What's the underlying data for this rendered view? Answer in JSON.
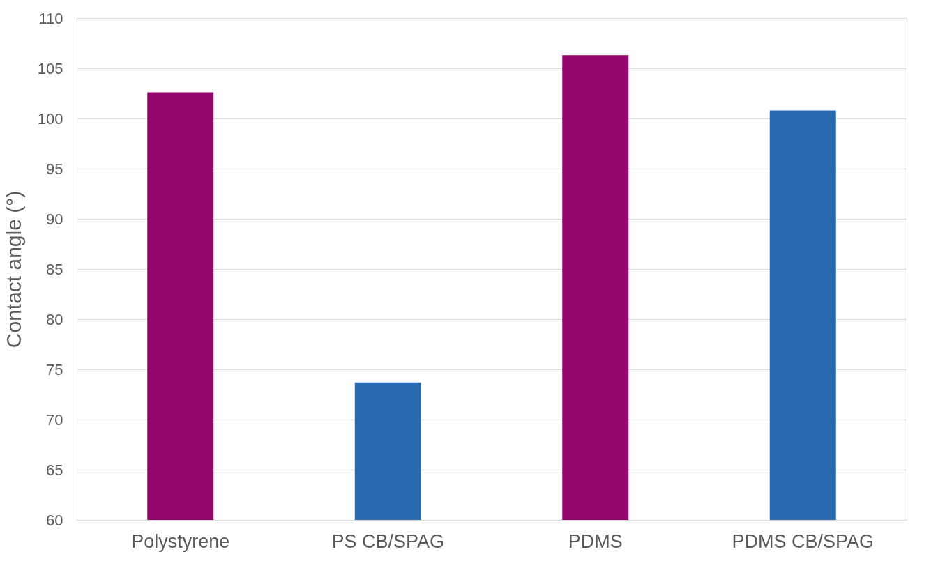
{
  "chart_data": {
    "type": "bar",
    "ylabel": "Contact angle (°)",
    "categories": [
      "Polystyrene",
      "PS CB/SPAG",
      "PDMS",
      "PDMS CB/SPAG"
    ],
    "values": [
      102.6,
      73.7,
      106.3,
      100.8
    ],
    "colors": [
      "#93066b",
      "#2a6ab2",
      "#93066b",
      "#2a6ab2"
    ],
    "ylim": [
      60,
      110
    ],
    "yticks": [
      60,
      65,
      70,
      75,
      80,
      85,
      90,
      95,
      100,
      105,
      110
    ],
    "grid": "y"
  }
}
